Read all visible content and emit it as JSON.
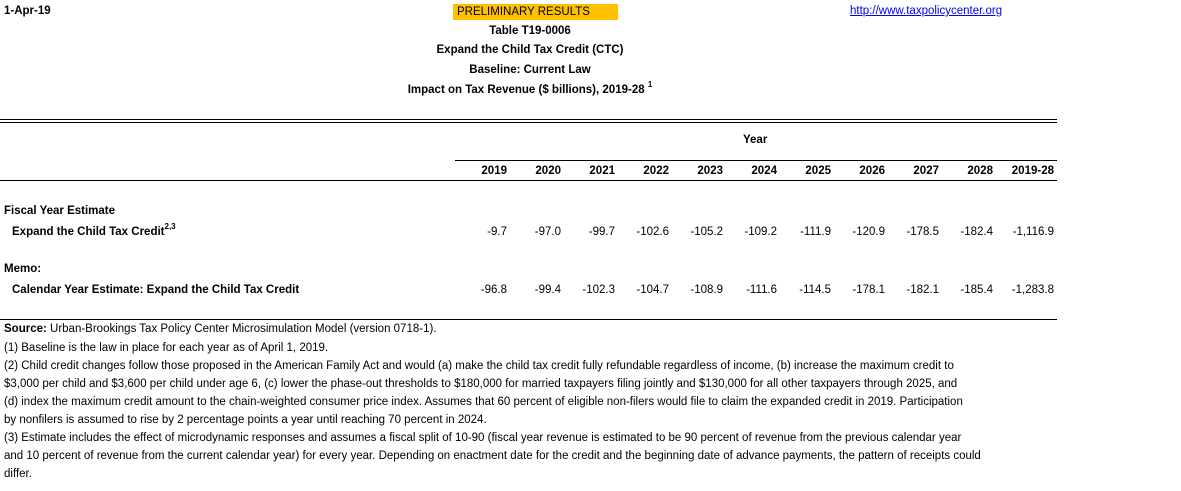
{
  "date": "1-Apr-19",
  "preliminary": "PRELIMINARY RESULTS",
  "url": "http://www.taxpolicycenter.org",
  "titles": {
    "table": "Table T19-0006",
    "policy": "Expand the Child Tax Credit (CTC)",
    "baseline": "Baseline: Current Law",
    "impact": "Impact on Tax Revenue ($ billions), 2019-28",
    "impact_sup": "1"
  },
  "year_header": "Year",
  "columns": [
    "2019",
    "2020",
    "2021",
    "2022",
    "2023",
    "2024",
    "2025",
    "2026",
    "2027",
    "2028",
    "2019-28"
  ],
  "sections": {
    "fiscal": {
      "heading": "Fiscal Year Estimate",
      "row_label": "Expand the Child Tax Credit",
      "row_sup": "2,3",
      "values": [
        "-9.7",
        "-97.0",
        "-99.7",
        "-102.6",
        "-105.2",
        "-109.2",
        "-111.9",
        "-120.9",
        "-178.5",
        "-182.4",
        "-1,116.9"
      ]
    },
    "memo": {
      "heading": "Memo:",
      "row_label": "Calendar Year Estimate: Expand the Child Tax Credit",
      "values": [
        "-96.8",
        "-99.4",
        "-102.3",
        "-104.7",
        "-108.9",
        "-111.6",
        "-114.5",
        "-178.1",
        "-182.1",
        "-185.4",
        "-1,283.8"
      ]
    }
  },
  "source_label": "Source:",
  "source_text": " Urban-Brookings Tax Policy Center Microsimulation Model (version 0718-1).",
  "notes": [
    "(1) Baseline is the law in place for each year as of April 1, 2019.",
    "(2) Child credit changes follow those proposed in the American Family Act and would (a) make the child tax credit fully refundable regardless of income, (b) increase the maximum credit to",
    "$3,000 per child and $3,600 per child under age 6, (c) lower the phase-out thresholds to $180,000 for married taxpayers filing jointly and $130,000 for all other taxpayers through 2025, and",
    "(d) index the maximum credit amount to the chain-weighted consumer price index. Assumes that 60 percent of  eligible non-filers would file to claim the expanded credit in 2019. Participation",
    "by nonfilers is assumed to rise by 2 percentage points a year until reaching 70 percent in 2024.",
    "(3) Estimate includes the effect of microdynamic responses and assumes a fiscal split of 10-90 (fiscal year revenue is estimated to be 90 percent of revenue from the previous calendar year",
    "and 10 percent of revenue from the current calendar year) for every year. Depending on enactment date for the credit and the beginning date of advance payments, the pattern of receipts could",
    "differ."
  ]
}
